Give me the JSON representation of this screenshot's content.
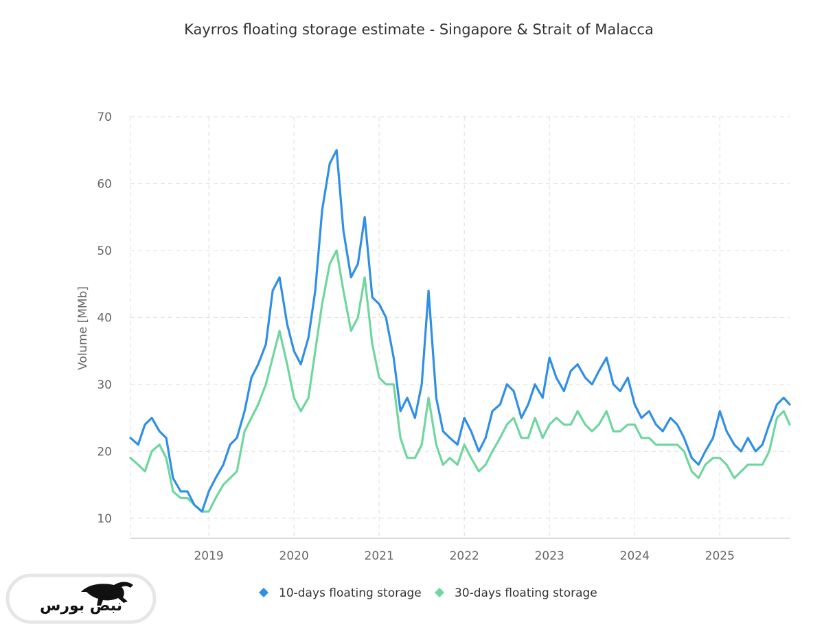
{
  "colors": {
    "series_10d": "#2f8fe6",
    "series_30d": "#6fd6a0",
    "grid": "#e3e3e3",
    "axis_line": "#cccccc",
    "text": "#333333",
    "muted_text": "#666666"
  },
  "watermark": {
    "text": "نبض بورس",
    "icon": "bull-icon"
  },
  "chart_data": {
    "type": "line",
    "title": "Kayrros floating storage estimate - Singapore & Strait of Malacca",
    "xlabel": "",
    "ylabel": "Volume [MMb]",
    "ylim": [
      7,
      70
    ],
    "xlim": [
      2018.08,
      2025.82
    ],
    "yticks": [
      10,
      20,
      30,
      40,
      50,
      60,
      70
    ],
    "xticks": [
      2019,
      2020,
      2021,
      2022,
      2023,
      2024,
      2025
    ],
    "xtick_labels": [
      "2019",
      "2020",
      "2021",
      "2022",
      "2023",
      "2024",
      "2025"
    ],
    "grid": true,
    "legend_position": "bottom-center",
    "series": [
      {
        "name": "10-days floating storage",
        "color": "#2f8fe6",
        "x": [
          2018.08,
          2018.17,
          2018.25,
          2018.33,
          2018.42,
          2018.5,
          2018.58,
          2018.67,
          2018.75,
          2018.83,
          2018.92,
          2019.0,
          2019.08,
          2019.17,
          2019.25,
          2019.33,
          2019.42,
          2019.5,
          2019.58,
          2019.67,
          2019.75,
          2019.83,
          2019.92,
          2020.0,
          2020.08,
          2020.17,
          2020.25,
          2020.33,
          2020.42,
          2020.5,
          2020.58,
          2020.67,
          2020.75,
          2020.83,
          2020.92,
          2021.0,
          2021.08,
          2021.17,
          2021.25,
          2021.33,
          2021.42,
          2021.5,
          2021.58,
          2021.67,
          2021.75,
          2021.83,
          2021.92,
          2022.0,
          2022.08,
          2022.17,
          2022.25,
          2022.33,
          2022.42,
          2022.5,
          2022.58,
          2022.67,
          2022.75,
          2022.83,
          2022.92,
          2023.0,
          2023.08,
          2023.17,
          2023.25,
          2023.33,
          2023.42,
          2023.5,
          2023.58,
          2023.67,
          2023.75,
          2023.83,
          2023.92,
          2024.0,
          2024.08,
          2024.17,
          2024.25,
          2024.33,
          2024.42,
          2024.5,
          2024.58,
          2024.67,
          2024.75,
          2024.83,
          2024.92,
          2025.0,
          2025.08,
          2025.17,
          2025.25,
          2025.33,
          2025.42,
          2025.5,
          2025.58,
          2025.67,
          2025.75,
          2025.82
        ],
        "values": [
          22,
          21,
          24,
          25,
          23,
          22,
          16,
          14,
          14,
          12,
          11,
          14,
          16,
          18,
          21,
          22,
          26,
          31,
          33,
          36,
          44,
          46,
          39,
          35,
          33,
          37,
          44,
          56,
          63,
          65,
          53,
          46,
          48,
          55,
          43,
          42,
          40,
          34,
          26,
          28,
          25,
          30,
          44,
          28,
          23,
          22,
          21,
          25,
          23,
          20,
          22,
          26,
          27,
          30,
          29,
          25,
          27,
          30,
          28,
          34,
          31,
          29,
          32,
          33,
          31,
          30,
          32,
          34,
          30,
          29,
          31,
          27,
          25,
          26,
          24,
          23,
          25,
          24,
          22,
          19,
          18,
          20,
          22,
          26,
          23,
          21,
          20,
          22,
          20,
          21,
          24,
          27,
          28,
          27
        ]
      },
      {
        "name": "30-days floating storage",
        "color": "#6fd6a0",
        "x": [
          2018.08,
          2018.17,
          2018.25,
          2018.33,
          2018.42,
          2018.5,
          2018.58,
          2018.67,
          2018.75,
          2018.83,
          2018.92,
          2019.0,
          2019.08,
          2019.17,
          2019.25,
          2019.33,
          2019.42,
          2019.5,
          2019.58,
          2019.67,
          2019.75,
          2019.83,
          2019.92,
          2020.0,
          2020.08,
          2020.17,
          2020.25,
          2020.33,
          2020.42,
          2020.5,
          2020.58,
          2020.67,
          2020.75,
          2020.83,
          2020.92,
          2021.0,
          2021.08,
          2021.17,
          2021.25,
          2021.33,
          2021.42,
          2021.5,
          2021.58,
          2021.67,
          2021.75,
          2021.83,
          2021.92,
          2022.0,
          2022.08,
          2022.17,
          2022.25,
          2022.33,
          2022.42,
          2022.5,
          2022.58,
          2022.67,
          2022.75,
          2022.83,
          2022.92,
          2023.0,
          2023.08,
          2023.17,
          2023.25,
          2023.33,
          2023.42,
          2023.5,
          2023.58,
          2023.67,
          2023.75,
          2023.83,
          2023.92,
          2024.0,
          2024.08,
          2024.17,
          2024.25,
          2024.33,
          2024.42,
          2024.5,
          2024.58,
          2024.67,
          2024.75,
          2024.83,
          2024.92,
          2025.0,
          2025.08,
          2025.17,
          2025.25,
          2025.33,
          2025.42,
          2025.5,
          2025.58,
          2025.67,
          2025.75,
          2025.82
        ],
        "values": [
          19,
          18,
          17,
          20,
          21,
          19,
          14,
          13,
          13,
          12,
          11,
          11,
          13,
          15,
          16,
          17,
          23,
          25,
          27,
          30,
          34,
          38,
          33,
          28,
          26,
          28,
          35,
          42,
          48,
          50,
          44,
          38,
          40,
          46,
          36,
          31,
          30,
          30,
          22,
          19,
          19,
          21,
          28,
          21,
          18,
          19,
          18,
          21,
          19,
          17,
          18,
          20,
          22,
          24,
          25,
          22,
          22,
          25,
          22,
          24,
          25,
          24,
          24,
          26,
          24,
          23,
          24,
          26,
          23,
          23,
          24,
          24,
          22,
          22,
          21,
          21,
          21,
          21,
          20,
          17,
          16,
          18,
          19,
          19,
          18,
          16,
          17,
          18,
          18,
          18,
          20,
          25,
          26,
          24
        ]
      }
    ]
  }
}
